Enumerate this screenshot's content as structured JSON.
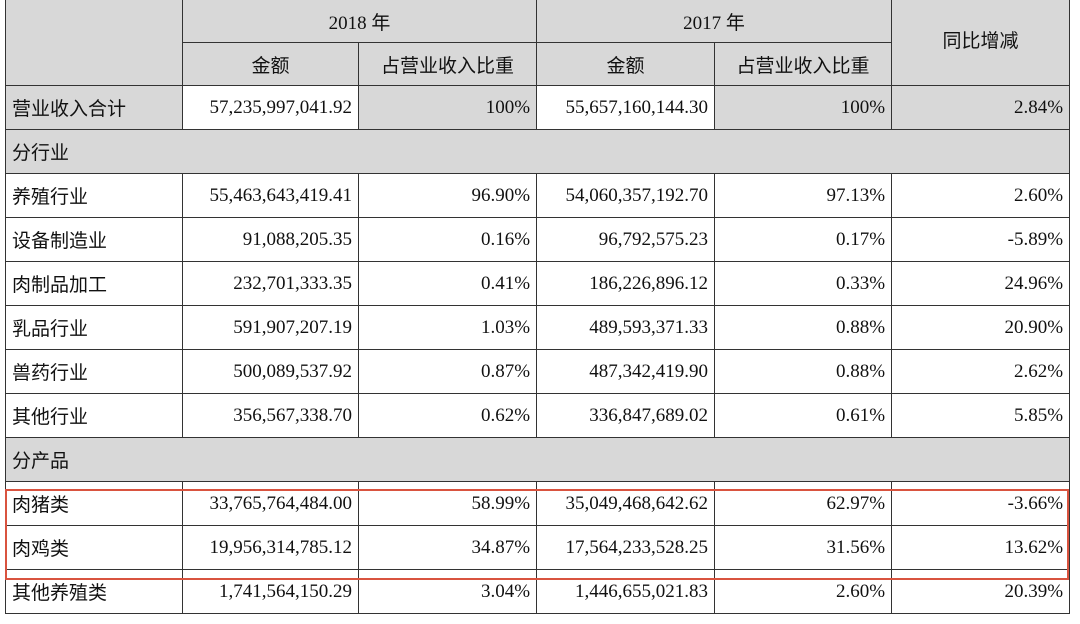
{
  "header": {
    "year_2018": "2018 年",
    "year_2017": "2017 年",
    "yoy": "同比增减",
    "amount": "金额",
    "share": "占营业收入比重"
  },
  "total": {
    "label": "营业收入合计",
    "amt2018": "57,235,997,041.92",
    "pct2018": "100%",
    "amt2017": "55,657,160,144.30",
    "pct2017": "100%",
    "yoy": "2.84%"
  },
  "by_industry": {
    "label": "分行业",
    "rows": [
      {
        "label": "养殖行业",
        "amt2018": "55,463,643,419.41",
        "pct2018": "96.90%",
        "amt2017": "54,060,357,192.70",
        "pct2017": "97.13%",
        "yoy": "2.60%"
      },
      {
        "label": "设备制造业",
        "amt2018": "91,088,205.35",
        "pct2018": "0.16%",
        "amt2017": "96,792,575.23",
        "pct2017": "0.17%",
        "yoy": "-5.89%"
      },
      {
        "label": "肉制品加工",
        "amt2018": "232,701,333.35",
        "pct2018": "0.41%",
        "amt2017": "186,226,896.12",
        "pct2017": "0.33%",
        "yoy": "24.96%"
      },
      {
        "label": "乳品行业",
        "amt2018": "591,907,207.19",
        "pct2018": "1.03%",
        "amt2017": "489,593,371.33",
        "pct2017": "0.88%",
        "yoy": "20.90%"
      },
      {
        "label": "兽药行业",
        "amt2018": "500,089,537.92",
        "pct2018": "0.87%",
        "amt2017": "487,342,419.90",
        "pct2017": "0.88%",
        "yoy": "2.62%"
      },
      {
        "label": "其他行业",
        "amt2018": "356,567,338.70",
        "pct2018": "0.62%",
        "amt2017": "336,847,689.02",
        "pct2017": "0.61%",
        "yoy": "5.85%"
      }
    ]
  },
  "by_product": {
    "label": "分产品",
    "rows": [
      {
        "label": "肉猪类",
        "amt2018": "33,765,764,484.00",
        "pct2018": "58.99%",
        "amt2017": "35,049,468,642.62",
        "pct2017": "62.97%",
        "yoy": "-3.66%"
      },
      {
        "label": "肉鸡类",
        "amt2018": "19,956,314,785.12",
        "pct2018": "34.87%",
        "amt2017": "17,564,233,528.25",
        "pct2017": "31.56%",
        "yoy": "13.62%"
      },
      {
        "label": "其他养殖类",
        "amt2018": "1,741,564,150.29",
        "pct2018": "3.04%",
        "amt2017": "1,446,655,021.83",
        "pct2017": "2.60%",
        "yoy": "20.39%"
      }
    ]
  },
  "highlight_color": "#d9533f"
}
